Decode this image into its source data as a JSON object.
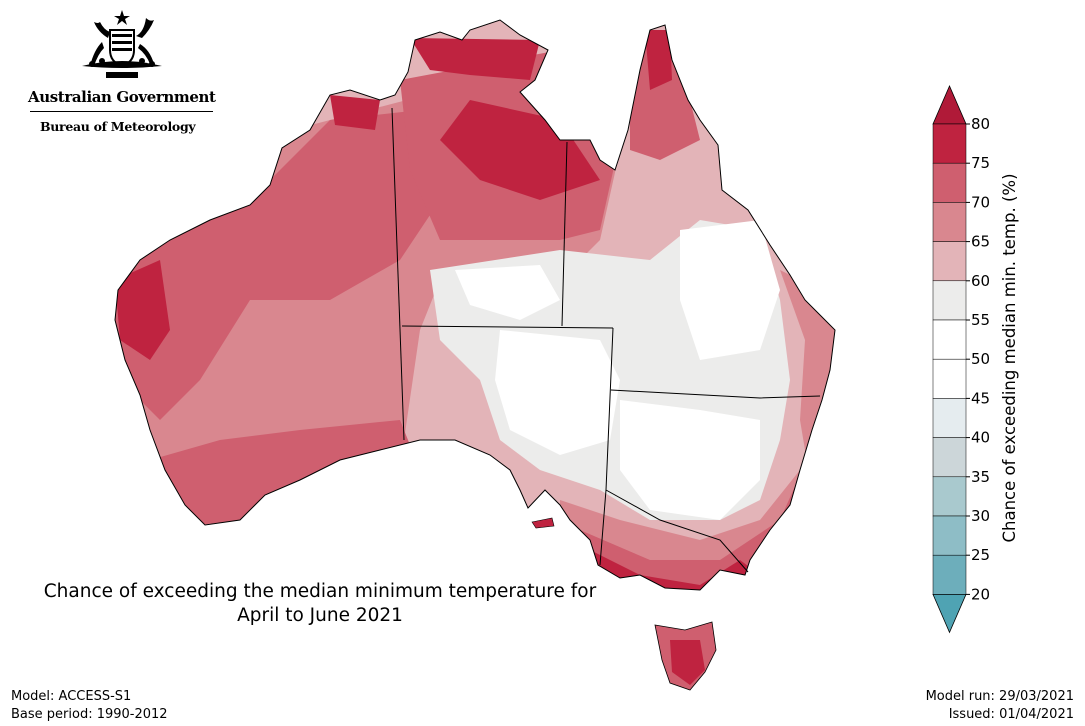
{
  "logo": {
    "government": "Australian Government",
    "agency": "Bureau of Meteorology"
  },
  "map_title": {
    "line1": "Chance of exceeding the median minimum temperature for",
    "line2": "April to June 2021"
  },
  "footer_left": {
    "model": "Model: ACCESS-S1",
    "base_period": "Base period: 1990-2012"
  },
  "footer_right": {
    "model_run": "Model run: 29/03/2021",
    "issued": "Issued: 01/04/2021"
  },
  "colorbar": {
    "label": "Chance of exceeding median min. temp. (%)",
    "ticks": [
      "80",
      "75",
      "70",
      "65",
      "60",
      "55",
      "50",
      "45",
      "40",
      "35",
      "30",
      "25",
      "20"
    ],
    "colors": [
      "#bf2340",
      "#cf5f6f",
      "#d9878f",
      "#e3b4b8",
      "#ececeb",
      "#ffffff",
      "#ffffff",
      "#e5ecef",
      "#ccd6d9",
      "#a9c9ce",
      "#8ebdc6",
      "#6daebb"
    ],
    "top_arrow_color": "#b01a38",
    "bottom_arrow_color": "#4fa3b3"
  }
}
